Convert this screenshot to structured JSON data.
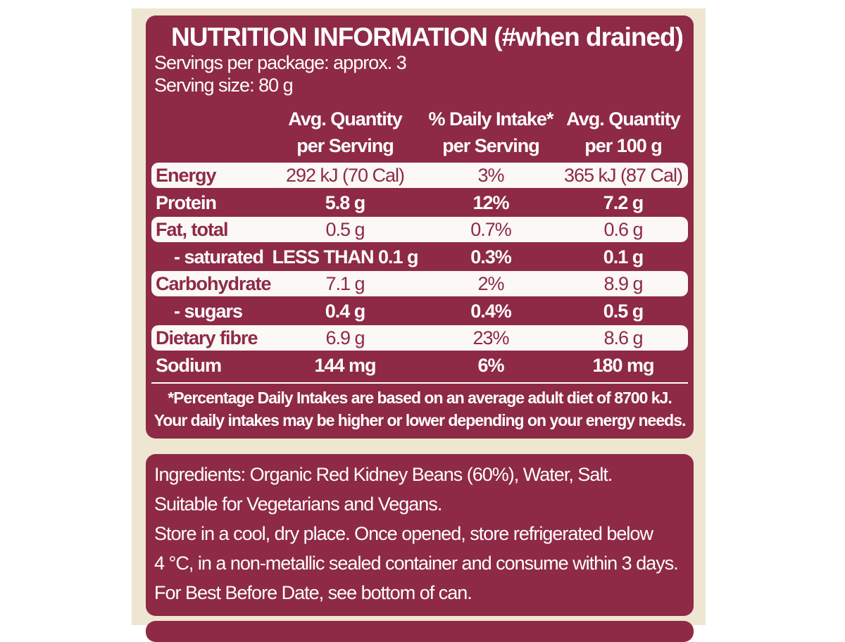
{
  "header": {
    "title": "NUTRITION INFORMATION (#when drained)",
    "servings": "Servings per package: approx. 3",
    "serving_size": "Serving size: 80 g"
  },
  "table": {
    "columns": [
      "Avg. Quantity\nper Serving",
      "% Daily Intake*\nper Serving",
      "Avg. Quantity\nper 100 g"
    ],
    "rows": [
      [
        "Energy",
        "292 kJ (70 Cal)",
        "3%",
        "365 kJ (87 Cal)"
      ],
      [
        "Protein",
        "5.8 g",
        "12%",
        "7.2 g"
      ],
      [
        "Fat, total",
        "0.5 g",
        "0.7%",
        "0.6 g"
      ],
      [
        "- saturated",
        "LESS THAN 0.1 g",
        "0.3%",
        "0.1 g"
      ],
      [
        "Carbohydrate",
        "7.1 g",
        "2%",
        "8.9 g"
      ],
      [
        "- sugars",
        "0.4 g",
        "0.4%",
        "0.5 g"
      ],
      [
        "Dietary fibre",
        "6.9 g",
        "23%",
        "8.6 g"
      ],
      [
        "Sodium",
        "144 mg",
        "6%",
        "180 mg"
      ]
    ]
  },
  "footnote": [
    "*Percentage Daily Intakes are based on an average adult diet of 8700 kJ.",
    "Your daily intakes may be higher or lower depending on your energy needs."
  ],
  "ingredients": [
    "Ingredients: Organic Red Kidney Beans (60%), Water, Salt.",
    "Suitable for Vegetarians and Vegans.",
    "Store in a cool, dry place. Once opened, store refrigerated below",
    "4 °C, in a non-metallic sealed container and consume within 3 days.",
    "For Best Before Date, see bottom of can."
  ]
}
